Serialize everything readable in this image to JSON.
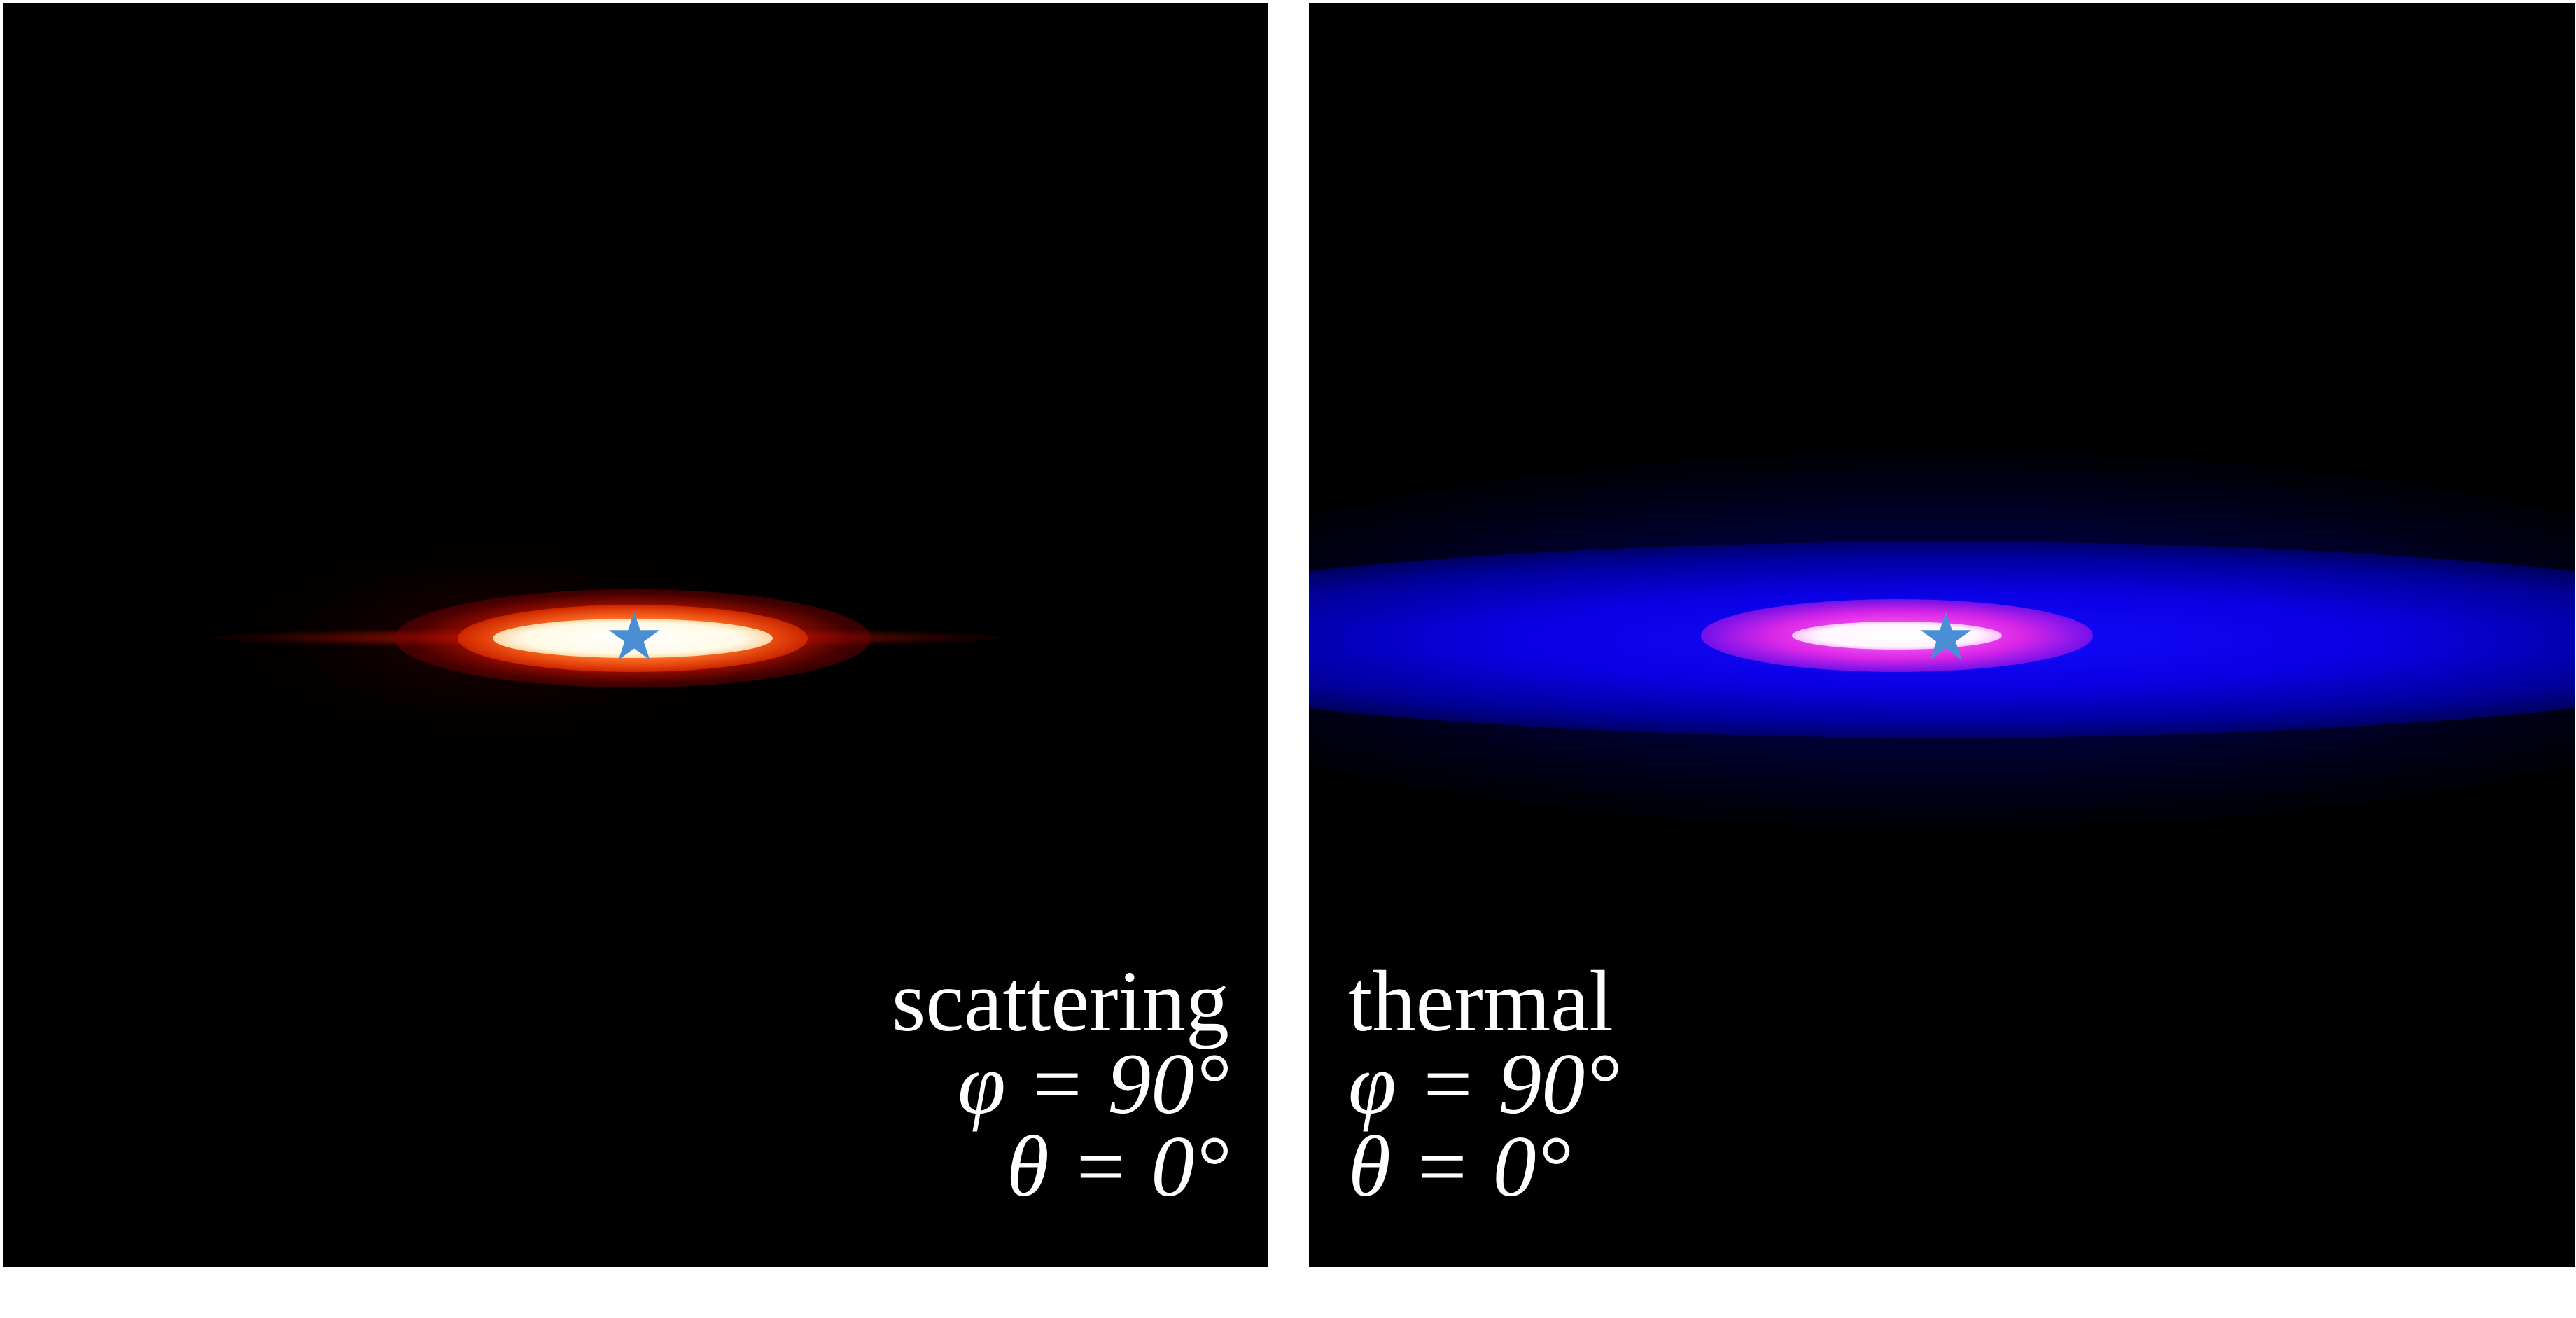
{
  "panels": [
    {
      "name": "scattering",
      "caption": "scattering",
      "phi_label": "φ = 90°",
      "theta_label": "θ = 0°",
      "colors": {
        "core": "#ffffff",
        "glow": "#ff2a00",
        "background": "#000000"
      }
    },
    {
      "name": "thermal",
      "caption": "thermal",
      "phi_label": "φ = 90°",
      "theta_label": "θ = 0°",
      "colors": {
        "core": "#ffffff",
        "inner": "#ff40ff",
        "glow": "#0a00ff",
        "background": "#000000"
      }
    }
  ],
  "marker": {
    "icon": "star-icon",
    "color": "#4a8fd6"
  }
}
